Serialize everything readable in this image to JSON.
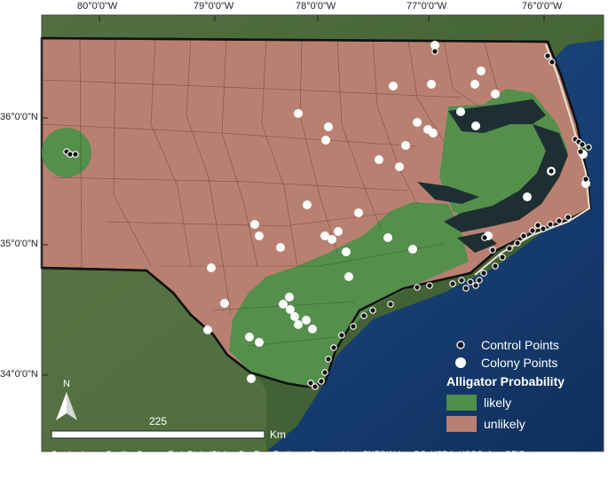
{
  "axes": {
    "longitude_labels": [
      "80°0'0\"W",
      "79°0'0\"W",
      "78°0'0\"W",
      "77°0'0\"W",
      "76°0'0\"W"
    ],
    "latitude_labels": [
      "36°0'0\"N",
      "35°0'0\"N",
      "34°0'0\"N"
    ]
  },
  "legend": {
    "control_points_label": "Control Points",
    "colony_points_label": "Colony Points",
    "probability_title": "Alligator Probability",
    "likely_label": "likely",
    "unlikely_label": "unlikely",
    "likely_color": "#4e8f4a",
    "unlikely_color": "#b98072"
  },
  "north_arrow": {
    "label": "N"
  },
  "scale_bar": {
    "value_label": "225",
    "unit_label": "Km"
  },
  "credits": {
    "line1": "Service Layer Credits:  Source: Esri, DigitalGlobe, GeoEye, Earthstar Geographics, CNES/Airbus DS, USDA, USGS, AeroGRID,",
    "line2": "IGN, and the GIS User Community"
  },
  "colors": {
    "ocean": "#173f73",
    "land_outside": "#3f5a34",
    "state_border": "#111111",
    "sound_water": "#1e2f33"
  }
}
